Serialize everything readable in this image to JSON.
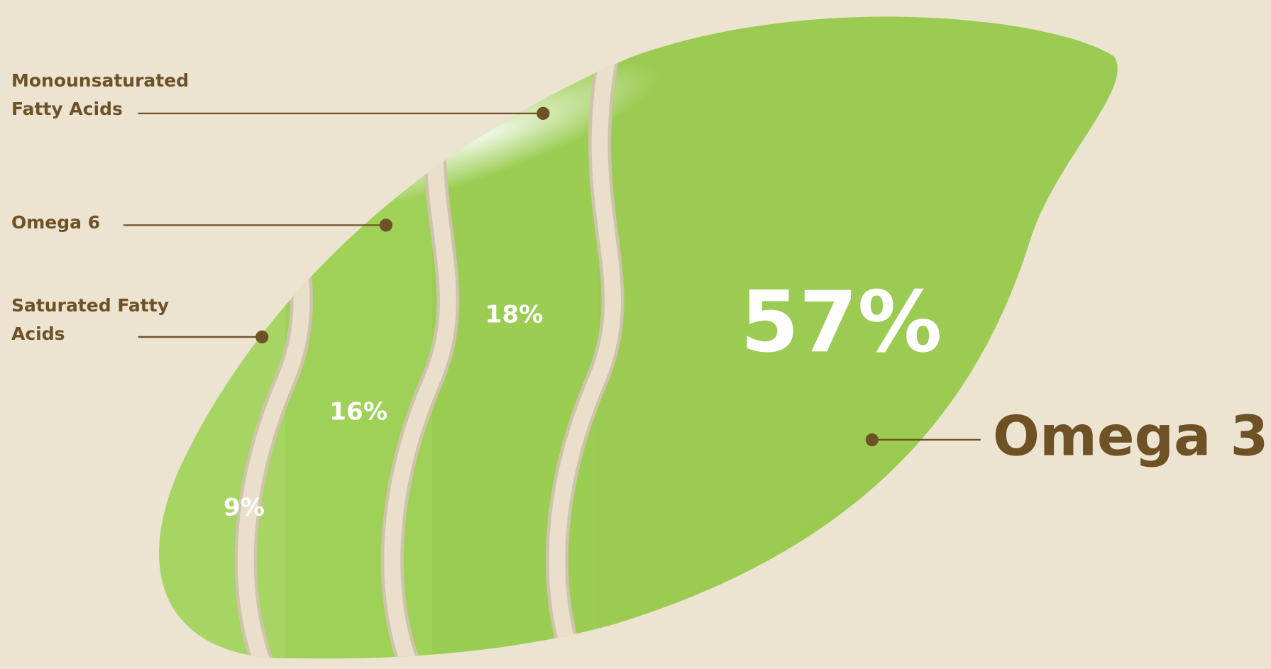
{
  "chart_data": {
    "type": "pie",
    "categories": [
      "Saturated Fatty Acids",
      "Omega 6",
      "Monounsaturated Fatty Acids",
      "Omega 3"
    ],
    "values": [
      9,
      16,
      18,
      57
    ],
    "value_labels": [
      "9%",
      "16%",
      "18%",
      "57%"
    ],
    "color": "#98c94c"
  }
}
